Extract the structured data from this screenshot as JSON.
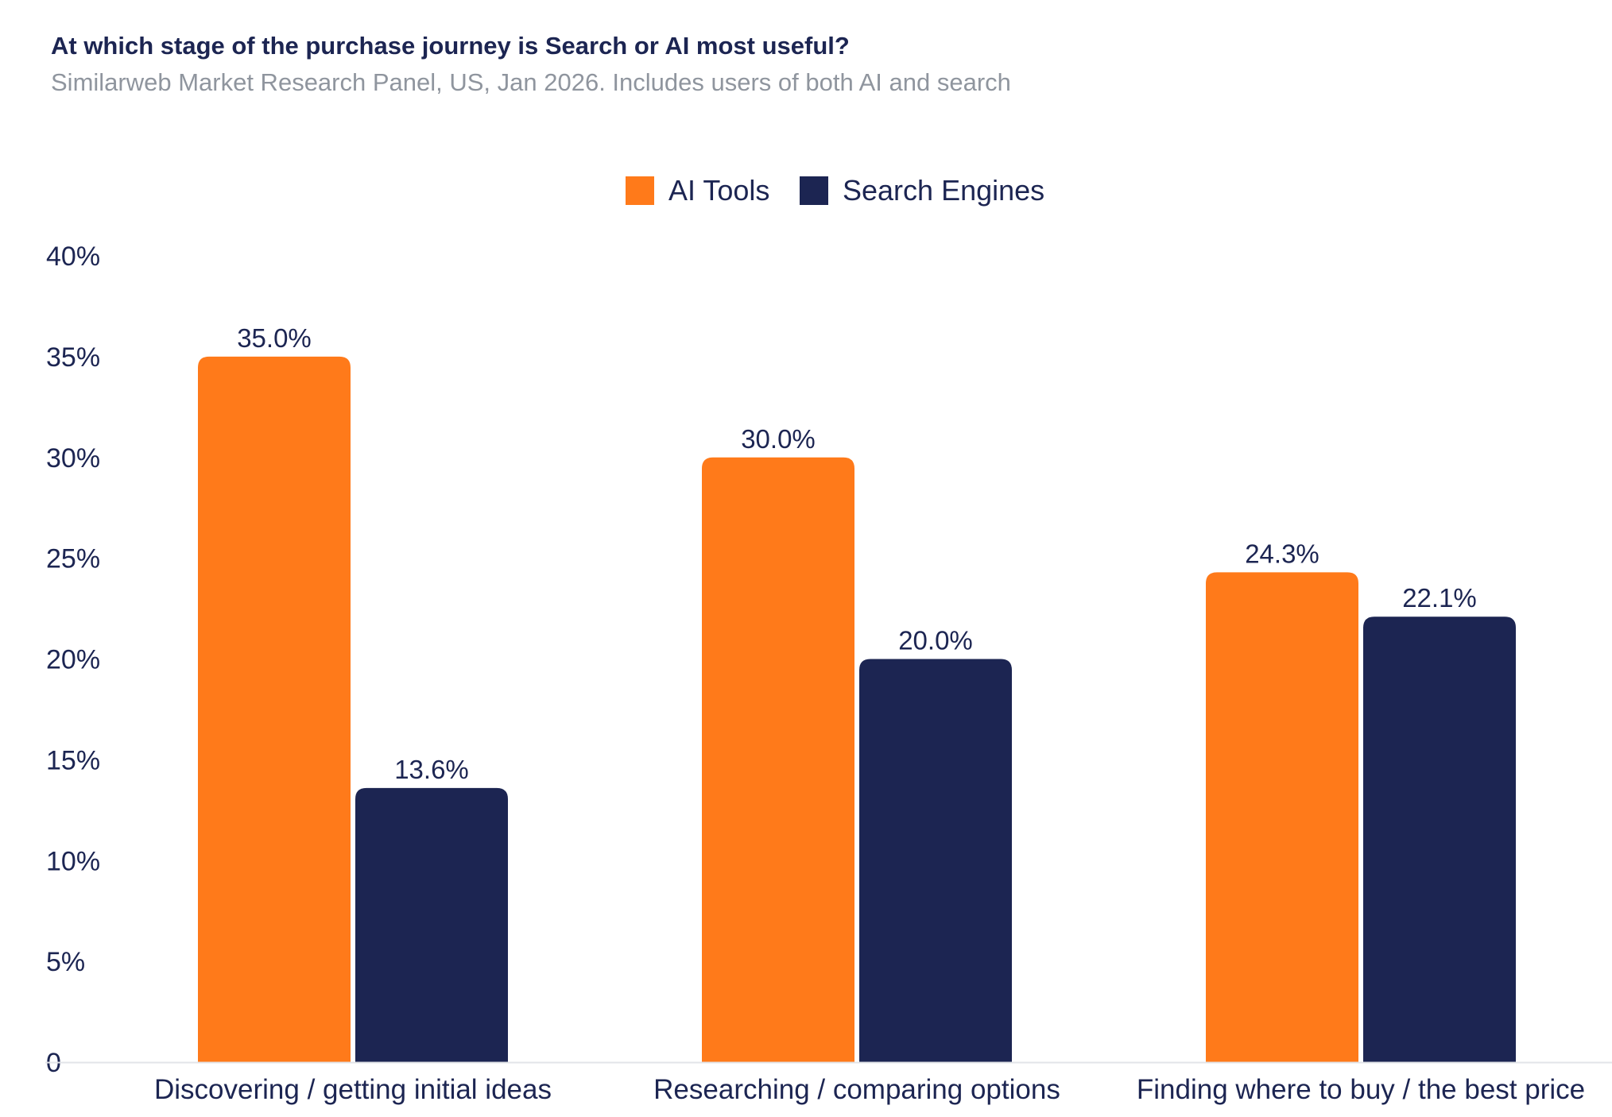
{
  "chart_data": {
    "type": "bar",
    "title": "At which stage of the purchase journey is Search or AI most useful?",
    "subtitle": "Similarweb Market Research Panel, US, Jan 2026. Includes users of both AI and search",
    "categories": [
      "Discovering / getting initial ideas",
      "Researching / comparing options",
      "Finding where to buy / the best price"
    ],
    "series": [
      {
        "name": "AI Tools",
        "color": "#ff7a1a",
        "values": [
          35.0,
          30.0,
          24.3
        ],
        "labels": [
          "35.0%",
          "30.0%",
          "24.3%"
        ]
      },
      {
        "name": "Search Engines",
        "color": "#1c2552",
        "values": [
          13.6,
          20.0,
          22.1
        ],
        "labels": [
          "13.6%",
          "20.0%",
          "22.1%"
        ]
      }
    ],
    "ylim": [
      0,
      40
    ],
    "yticks": [
      0,
      5,
      10,
      15,
      20,
      25,
      30,
      35,
      40
    ],
    "ytick_labels": [
      "0",
      "5%",
      "10%",
      "15%",
      "20%",
      "25%",
      "30%",
      "35%",
      "40%"
    ],
    "xlabel": "",
    "ylabel": "",
    "grid": false,
    "legend_position": "top-center"
  }
}
